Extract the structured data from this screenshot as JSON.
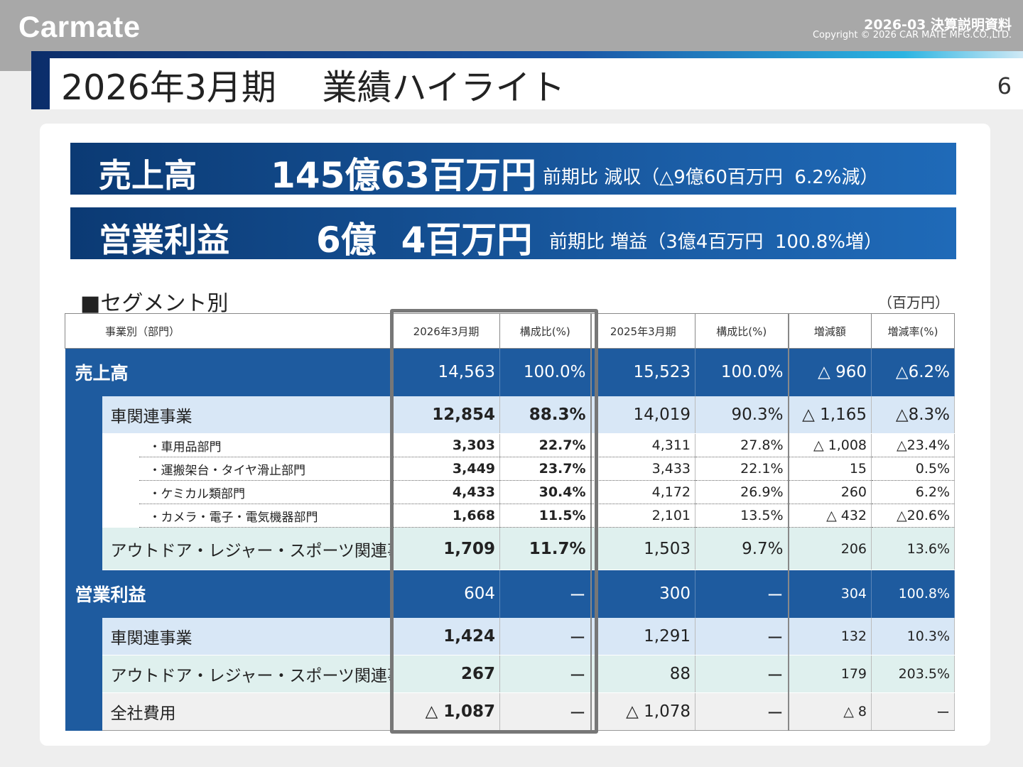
{
  "header": {
    "logo": "Carmate",
    "doc_title": "2026-03 決算説明資料",
    "copyright": "Copyright © 2026 CAR MATE MFG.CO.,LTD.",
    "page_title": "2026年3月期　 業績ハイライト",
    "page_number": "6"
  },
  "kpis": [
    {
      "label": "売上高",
      "value": "145億63百万円",
      "comparison": "前期比 減収（△9億60百万円  6.2%減）"
    },
    {
      "label": "営業利益",
      "value": "6億  4百万円",
      "comparison": "前期比 増益（3億4百万円  100.8%増）"
    }
  ],
  "segment": {
    "title": "■セグメント別",
    "unit": "（百万円）",
    "columns": [
      "事業別（部門）",
      "2026年3月期",
      "構成比(%)",
      "2025年3月期",
      "構成比(%)",
      "増減額",
      "増減率(%)"
    ],
    "sales": {
      "label": "売上高",
      "values": [
        "14,563",
        "100.0%",
        "15,523",
        "100.0%",
        "△ 960",
        "△6.2%"
      ],
      "car": {
        "label": "車関連事業",
        "values": [
          "12,854",
          "88.3%",
          "14,019",
          "90.3%",
          "△ 1,165",
          "△8.3%"
        ],
        "departments": [
          {
            "label": "・車用品部門",
            "values": [
              "3,303",
              "22.7%",
              "4,311",
              "27.8%",
              "△ 1,008",
              "△23.4%"
            ]
          },
          {
            "label": "・運搬架台・タイヤ滑止部門",
            "values": [
              "3,449",
              "23.7%",
              "3,433",
              "22.1%",
              "15",
              "0.5%"
            ]
          },
          {
            "label": "・ケミカル類部門",
            "values": [
              "4,433",
              "30.4%",
              "4,172",
              "26.9%",
              "260",
              "6.2%"
            ]
          },
          {
            "label": "・カメラ・電子・電気機器部門",
            "values": [
              "1,668",
              "11.5%",
              "2,101",
              "13.5%",
              "△ 432",
              "△20.6%"
            ]
          }
        ]
      },
      "outdoor": {
        "label": "アウトドア・レジャー・スポーツ関連事業",
        "values": [
          "1,709",
          "11.7%",
          "1,503",
          "9.7%",
          "206",
          "13.6%"
        ]
      }
    },
    "operating_income": {
      "label": "営業利益",
      "values": [
        "604",
        "ー",
        "300",
        "ー",
        "304",
        "100.8%"
      ],
      "car": {
        "label": "車関連事業",
        "values": [
          "1,424",
          "ー",
          "1,291",
          "ー",
          "132",
          "10.3%"
        ]
      },
      "outdoor": {
        "label": "アウトドア・レジャー・スポーツ関連事業",
        "values": [
          "267",
          "ー",
          "88",
          "ー",
          "179",
          "203.5%"
        ]
      },
      "corporate": {
        "label": "全社費用",
        "values": [
          "△ 1,087",
          "ー",
          "△ 1,078",
          "ー",
          "△ 8",
          "ー"
        ]
      }
    }
  }
}
